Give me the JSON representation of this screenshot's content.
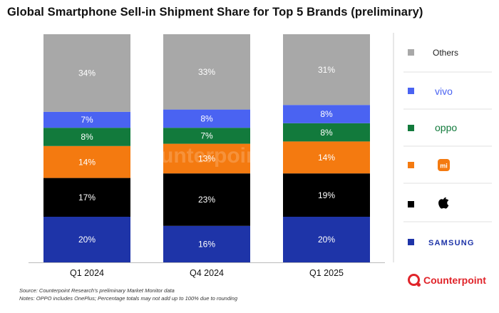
{
  "chart_data": {
    "type": "bar",
    "stacked": true,
    "title": "Global Smartphone Sell-in Shipment Share for Top 5 Brands (preliminary)",
    "categories": [
      "Q1 2024",
      "Q4 2024",
      "Q1 2025"
    ],
    "series": [
      {
        "name": "SAMSUNG",
        "color": "#1e34a8",
        "text_color": "#ffffff",
        "values": [
          20,
          16,
          20
        ]
      },
      {
        "name": "Apple",
        "color": "#000000",
        "text_color": "#ffffff",
        "values": [
          17,
          23,
          19
        ]
      },
      {
        "name": "mi",
        "color": "#f47a10",
        "text_color": "#ffffff",
        "values": [
          14,
          13,
          14
        ]
      },
      {
        "name": "oppo",
        "color": "#127a3c",
        "text_color": "#ffffff",
        "values": [
          8,
          7,
          8
        ]
      },
      {
        "name": "vivo",
        "color": "#4a63f2",
        "text_color": "#ffffff",
        "values": [
          7,
          8,
          8
        ]
      },
      {
        "name": "Others",
        "color": "#a8a8a8",
        "text_color": "#ffffff",
        "values": [
          34,
          33,
          31
        ]
      }
    ],
    "value_suffix": "%",
    "ylim": [
      0,
      100
    ],
    "xlabel": "",
    "ylabel": "",
    "legend_position": "right"
  },
  "legend": {
    "others_label": "Others",
    "vivo_label": "vivo",
    "oppo_label": "oppo",
    "xiaomi_label": "mi",
    "samsung_label": "SAMSUNG",
    "vivo_color": "#4a63f2",
    "oppo_color": "#127a3c",
    "xiaomi_color": "#f47a10",
    "samsung_color": "#1e34a8"
  },
  "watermark": "Counterpoint",
  "notes": {
    "source": "Source: Counterpoint Research's preliminary Market Monitor data",
    "notes": "Notes: OPPO includes OnePlus; Percentage totals may not add up to 100% due to rounding"
  },
  "brand": {
    "name": "Counterpoint",
    "color": "#e0242a"
  }
}
